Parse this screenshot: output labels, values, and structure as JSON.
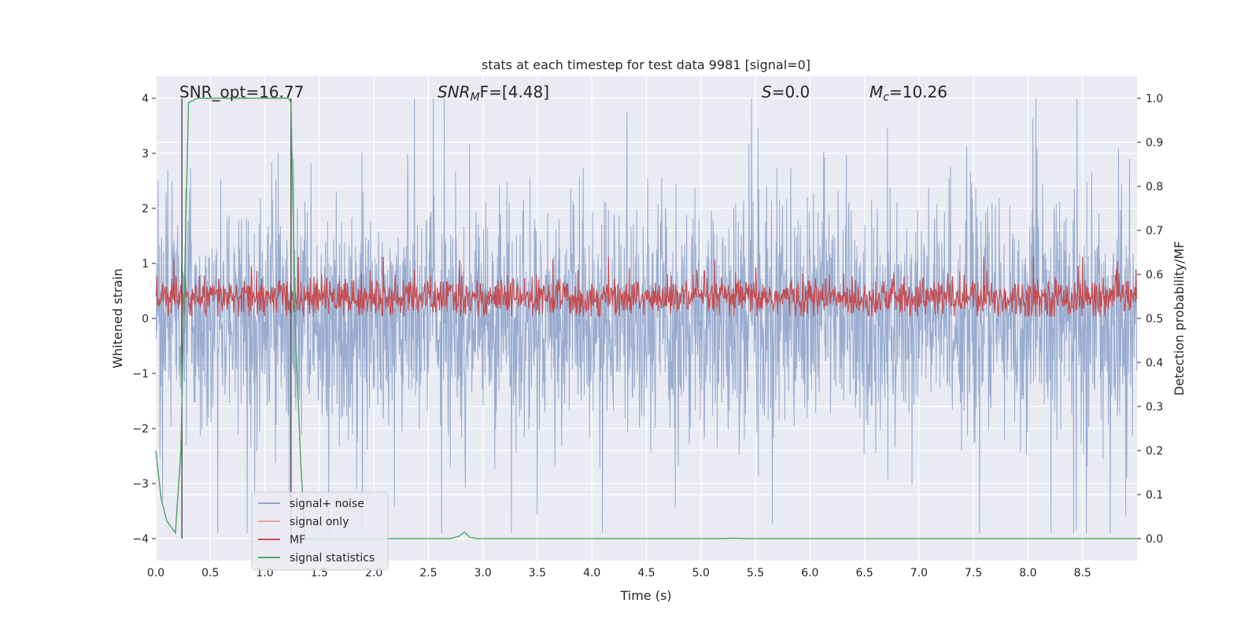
{
  "chart_data": {
    "type": "line",
    "title": "stats at each timestep for test data 9981 [signal=0]",
    "xlabel": "Time (s)",
    "ylabel_left": "Whitened strain",
    "ylabel_right": "Detection probability/MF",
    "xlim": [
      0,
      9.0
    ],
    "ylim_left": [
      -4.4,
      4.4
    ],
    "ylim_right": [
      -0.05,
      1.05
    ],
    "x_ticks": [
      "0.0",
      "0.5",
      "1.0",
      "1.5",
      "2.0",
      "2.5",
      "3.0",
      "3.5",
      "4.0",
      "4.5",
      "5.0",
      "5.5",
      "6.0",
      "6.5",
      "7.0",
      "7.5",
      "8.0",
      "8.5"
    ],
    "y_ticks_left": [
      "4",
      "3",
      "2",
      "1",
      "0",
      "−1",
      "−2",
      "−3",
      "−4"
    ],
    "y_ticks_left_values": [
      4,
      3,
      2,
      1,
      0,
      -1,
      -2,
      -3,
      -4
    ],
    "y_ticks_right": [
      "1.0",
      "0.9",
      "0.8",
      "0.7",
      "0.6",
      "0.5",
      "0.4",
      "0.3",
      "0.2",
      "0.1",
      "0.0"
    ],
    "y_ticks_right_values": [
      1.0,
      0.9,
      0.8,
      0.7,
      0.6,
      0.5,
      0.4,
      0.3,
      0.2,
      0.1,
      0.0
    ],
    "annotations": [
      {
        "id": "snr-opt",
        "text": "SNR_opt=16.77"
      },
      {
        "id": "snr-mf",
        "text": "SNRMF=[4.48]",
        "base": "SNR",
        "sub": "M",
        "rest": "F=[4.48]"
      },
      {
        "id": "s-val",
        "text": "S=0.0",
        "base": "S",
        "rest": "=0.0"
      },
      {
        "id": "mc-val",
        "text": "Mc=10.26",
        "base": "M",
        "sub": "c",
        "rest": "=10.26"
      }
    ],
    "vlines_x": [
      0.24,
      1.24
    ],
    "legend": [
      {
        "label": "signal+ noise",
        "color": "#8fa5cc"
      },
      {
        "label": "signal only",
        "color": "#e8a78f"
      },
      {
        "label": "MF",
        "color": "#c44e52"
      },
      {
        "label": "signal statistics",
        "color": "#55a868"
      }
    ],
    "series": [
      {
        "name": "signal+ noise",
        "axis": "left",
        "envelope": "random whitened noise, approx. amplitude 1.4 with peaks up to 4.0 and down to -3.9"
      },
      {
        "name": "MF",
        "axis": "right",
        "envelope": "random band between about 0.50 and 0.60 with spikes up to 0.64"
      },
      {
        "name": "signal statistics",
        "axis": "right",
        "x": [
          0.0,
          0.05,
          0.1,
          0.18,
          0.23,
          0.3,
          0.38,
          1.15,
          1.22,
          1.24,
          1.28,
          1.33,
          1.37,
          1.42,
          2.7,
          2.78,
          2.83,
          2.88,
          2.95,
          5.2,
          5.3,
          5.4,
          9.0
        ],
        "values": [
          0.2,
          0.09,
          0.04,
          0.013,
          0.2,
          0.99,
          1.0,
          1.0,
          1.0,
          0.99,
          0.47,
          0.17,
          0.0,
          0.0,
          0.0,
          0.005,
          0.015,
          0.003,
          0.0,
          0.0,
          0.001,
          0.0,
          0.0
        ]
      }
    ]
  },
  "colors": {
    "plot_bg": "#eaeaf2",
    "grid": "#ffffff",
    "noise": "#8fa5cc",
    "signal_only": "#e8a78f",
    "mf": "#c44e52",
    "stats": "#55a868",
    "vline": "#555555"
  }
}
